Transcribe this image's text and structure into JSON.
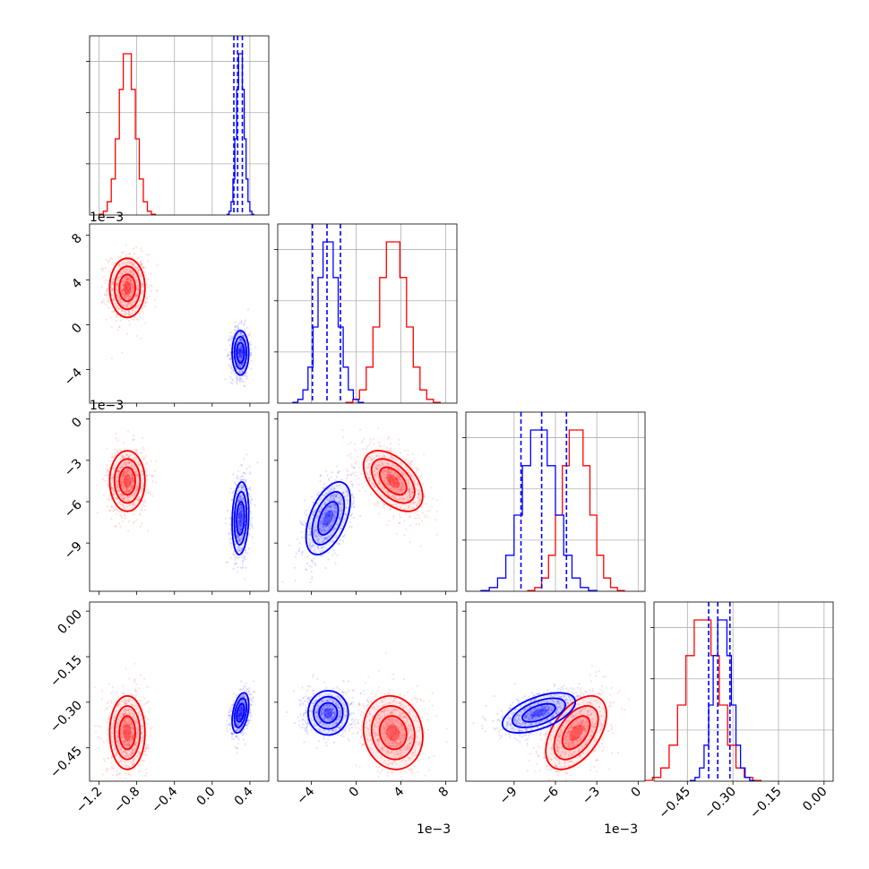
{
  "chart_data": {
    "type": "corner",
    "n_params": 4,
    "colors": {
      "series_a": "#ff0000",
      "series_b": "#0000ff"
    },
    "grid": true,
    "axis_ranges": [
      [
        -1.3,
        0.6
      ],
      [
        -0.007,
        0.009
      ],
      [
        -0.0125,
        0.0005
      ],
      [
        -0.56,
        0.03
      ]
    ],
    "ticks": [
      {
        "values": [
          -1.2,
          -0.8,
          -0.4,
          0.0,
          0.4
        ],
        "labels": [
          "−1.2",
          "−0.8",
          "−0.4",
          "0.0",
          "0.4"
        ]
      },
      {
        "values": [
          -0.004,
          0,
          0.004,
          0.008
        ],
        "labels": [
          "−4",
          "0",
          "4",
          "8"
        ]
      },
      {
        "values": [
          -0.009,
          -0.006,
          -0.003,
          0
        ],
        "labels": [
          "−9",
          "−6",
          "−3",
          "0"
        ]
      },
      {
        "values": [
          -0.45,
          -0.3,
          -0.15,
          0.0
        ],
        "labels": [
          "−0.45",
          "−0.30",
          "−0.15",
          "0.00"
        ]
      }
    ],
    "y_ticks": [
      null,
      {
        "values": [
          -0.004,
          0,
          0.004,
          0.008
        ],
        "labels": [
          "−4",
          "0",
          "4",
          "8"
        ]
      },
      {
        "values": [
          -0.009,
          -0.006,
          -0.003,
          0
        ],
        "labels": [
          "−9",
          "−6",
          "−3",
          "0"
        ]
      },
      {
        "values": [
          -0.45,
          -0.3,
          -0.15,
          0.0
        ],
        "labels": [
          "−0.45",
          "−0.30",
          "−0.15",
          "0.00"
        ]
      }
    ],
    "offset_text": [
      "",
      "1e−3",
      "1e−3",
      ""
    ],
    "series": [
      {
        "color": "#ff0000",
        "mean": [
          -0.9,
          0.0033,
          -0.0045,
          -0.4
        ],
        "std": [
          0.085,
          0.0012,
          0.001,
          0.055
        ],
        "corr": {
          "1-2": -0.5,
          "1-3": -0.1,
          "2-3": 0.5
        },
        "hist_bins": 14
      },
      {
        "color": "#0000ff",
        "mean": [
          0.3,
          -0.0025,
          -0.0072,
          -0.335
        ],
        "std": [
          0.04,
          0.0009,
          0.0012,
          0.03
        ],
        "corr": {
          "0-2": 0.15,
          "0-3": 0.4,
          "1-2": 0.5,
          "2-3": 0.55
        },
        "hist_bins": 14
      }
    ],
    "quantile_lines": {
      "color": "#0000ff",
      "values": [
        [
          0.23,
          0.27,
          0.32
        ],
        [
          -0.0039,
          -0.0026,
          -0.0014
        ],
        [
          -0.0085,
          -0.007,
          -0.0052
        ],
        [
          -0.38,
          -0.35,
          -0.31
        ]
      ]
    }
  }
}
